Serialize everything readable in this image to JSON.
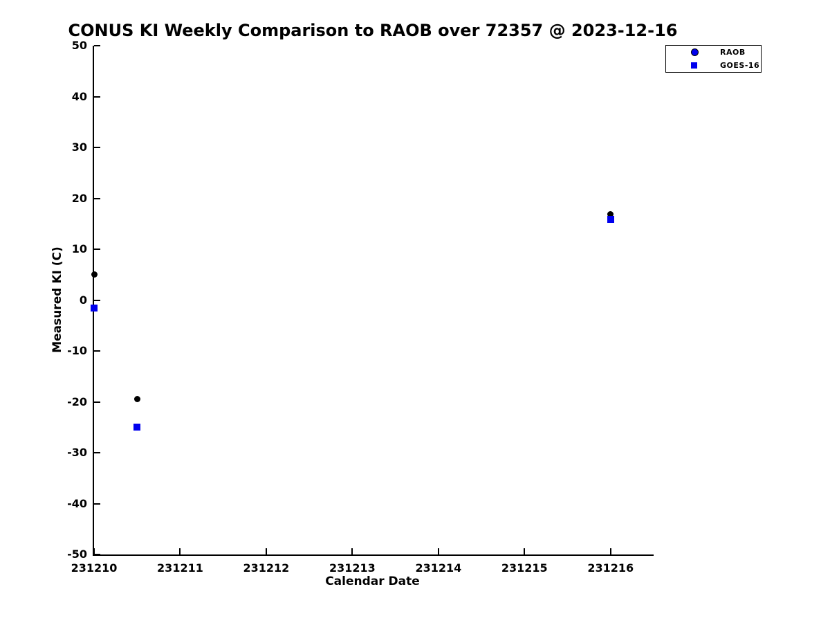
{
  "figure": {
    "background": "#ffffff",
    "text_color": "#000000"
  },
  "chart_data": {
    "type": "scatter",
    "title": "CONUS KI Weekly Comparison to RAOB over 72357 @ 2023-12-16",
    "xlabel": "Calendar Date",
    "ylabel": "Measured KI (C)",
    "xlim": [
      231210,
      231216.5
    ],
    "ylim": [
      -50,
      50
    ],
    "xticks": [
      231210,
      231211,
      231212,
      231213,
      231214,
      231215,
      231216
    ],
    "yticks": [
      -50,
      -40,
      -30,
      -20,
      -10,
      0,
      10,
      20,
      30,
      40,
      50
    ],
    "grid": false,
    "legend_position": "top-right",
    "series": [
      {
        "name": "RAOB",
        "marker": "circle",
        "color": "#000000",
        "legend_marker_color": "#0000ee",
        "points": [
          {
            "x": 231210.0,
            "y": 5.0
          },
          {
            "x": 231210.5,
            "y": -19.4
          },
          {
            "x": 231216.0,
            "y": 16.9
          }
        ]
      },
      {
        "name": "GOES-16",
        "marker": "square",
        "color": "#0000ee",
        "legend_marker_color": "#0000ee",
        "points": [
          {
            "x": 231210.0,
            "y": -1.6
          },
          {
            "x": 231210.5,
            "y": -24.9
          },
          {
            "x": 231216.0,
            "y": 15.9
          }
        ]
      }
    ]
  }
}
